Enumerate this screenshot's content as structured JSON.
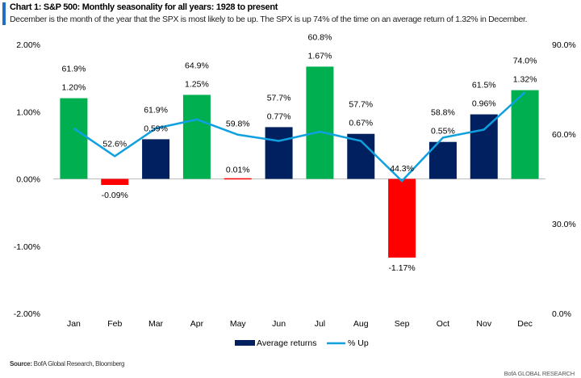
{
  "header": {
    "title": "Chart 1: S&P 500: Monthly seasonality for all years: 1928 to present",
    "subtitle": "December is the month of the year that the SPX is most likely to be up. The SPX is up 74% of the time on an average return of 1.32% in December."
  },
  "footer": {
    "source_label": "Source:",
    "source_text": " BofA Global Research, Bloomberg",
    "brand": "BofA GLOBAL RESEARCH"
  },
  "chart_data": {
    "type": "bar+line",
    "categories": [
      "Jan",
      "Feb",
      "Mar",
      "Apr",
      "May",
      "Jun",
      "Jul",
      "Aug",
      "Sep",
      "Oct",
      "Nov",
      "Dec"
    ],
    "series": [
      {
        "name": "Average returns",
        "axis": "left",
        "unit": "%",
        "values": [
          1.2,
          -0.09,
          0.59,
          1.25,
          0.01,
          0.77,
          1.67,
          0.67,
          -1.17,
          0.55,
          0.96,
          1.32
        ],
        "labels": [
          "1.20%",
          "-0.09%",
          "0.59%",
          "1.25%",
          "0.01%",
          "0.77%",
          "1.67%",
          "0.67%",
          "-1.17%",
          "0.55%",
          "0.96%",
          "1.32%"
        ]
      },
      {
        "name": "% Up",
        "axis": "right",
        "unit": "%",
        "values": [
          61.9,
          52.6,
          61.9,
          64.9,
          59.8,
          57.7,
          60.8,
          57.7,
          44.3,
          58.8,
          61.5,
          74.0
        ],
        "labels": [
          "61.9%",
          "52.6%",
          "61.9%",
          "64.9%",
          "59.8%",
          "57.7%",
          "60.8%",
          "57.7%",
          "44.3%",
          "58.8%",
          "61.5%",
          "74.0%"
        ]
      }
    ],
    "bar_colors": [
      "#00b050",
      "#ff0000",
      "#002060",
      "#00b050",
      "#ff0000",
      "#002060",
      "#00b050",
      "#002060",
      "#ff0000",
      "#002060",
      "#002060",
      "#00b050"
    ],
    "line_color": "#0fa0e0",
    "legend_swatch_color": "#002060",
    "left_axis": {
      "range": [
        -2,
        2
      ],
      "ticks": [
        2,
        1,
        0,
        -1,
        -2
      ],
      "tick_labels": [
        "2.00%",
        "1.00%",
        "0.00%",
        "-1.00%",
        "-2.00%"
      ]
    },
    "right_axis": {
      "range": [
        0,
        90
      ],
      "ticks": [
        90,
        60,
        30,
        0
      ],
      "tick_labels": [
        "90.0%",
        "60.0%",
        "30.0%",
        "0.0%"
      ]
    },
    "legend_position": "bottom-center",
    "grid": false
  }
}
